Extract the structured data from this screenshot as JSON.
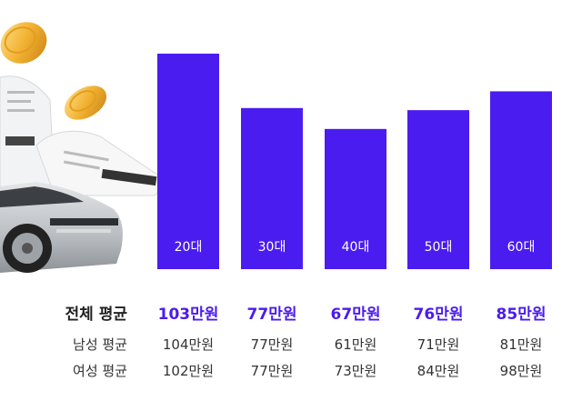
{
  "colors": {
    "bar": "#4B1CF0",
    "accent_text": "#4B1CF0"
  },
  "chart_data": {
    "type": "bar",
    "categories": [
      "20대",
      "30대",
      "40대",
      "50대",
      "60대"
    ],
    "series": [
      {
        "name": "전체 평균",
        "values": [
          103,
          77,
          67,
          76,
          85
        ]
      },
      {
        "name": "남성 평균",
        "values": [
          104,
          77,
          61,
          71,
          81
        ]
      },
      {
        "name": "여성 평균",
        "values": [
          102,
          77,
          73,
          84,
          98
        ]
      }
    ],
    "bar_series": "전체 평균",
    "unit": "만원",
    "ylim": [
      0,
      103
    ],
    "grid": false,
    "legend": "none"
  },
  "table": {
    "rows": [
      {
        "label": "전체 평균",
        "values": [
          "103만원",
          "77만원",
          "67만원",
          "76만원",
          "85만원"
        ]
      },
      {
        "label": "남성 평균",
        "values": [
          "104만원",
          "77만원",
          "61만원",
          "71만원",
          "81만원"
        ]
      },
      {
        "label": "여성 평균",
        "values": [
          "102만원",
          "77만원",
          "73만원",
          "84만원",
          "98만원"
        ]
      }
    ]
  },
  "illustration": {
    "icons": [
      "coin-icon",
      "receipt-icon",
      "car-icon"
    ]
  }
}
